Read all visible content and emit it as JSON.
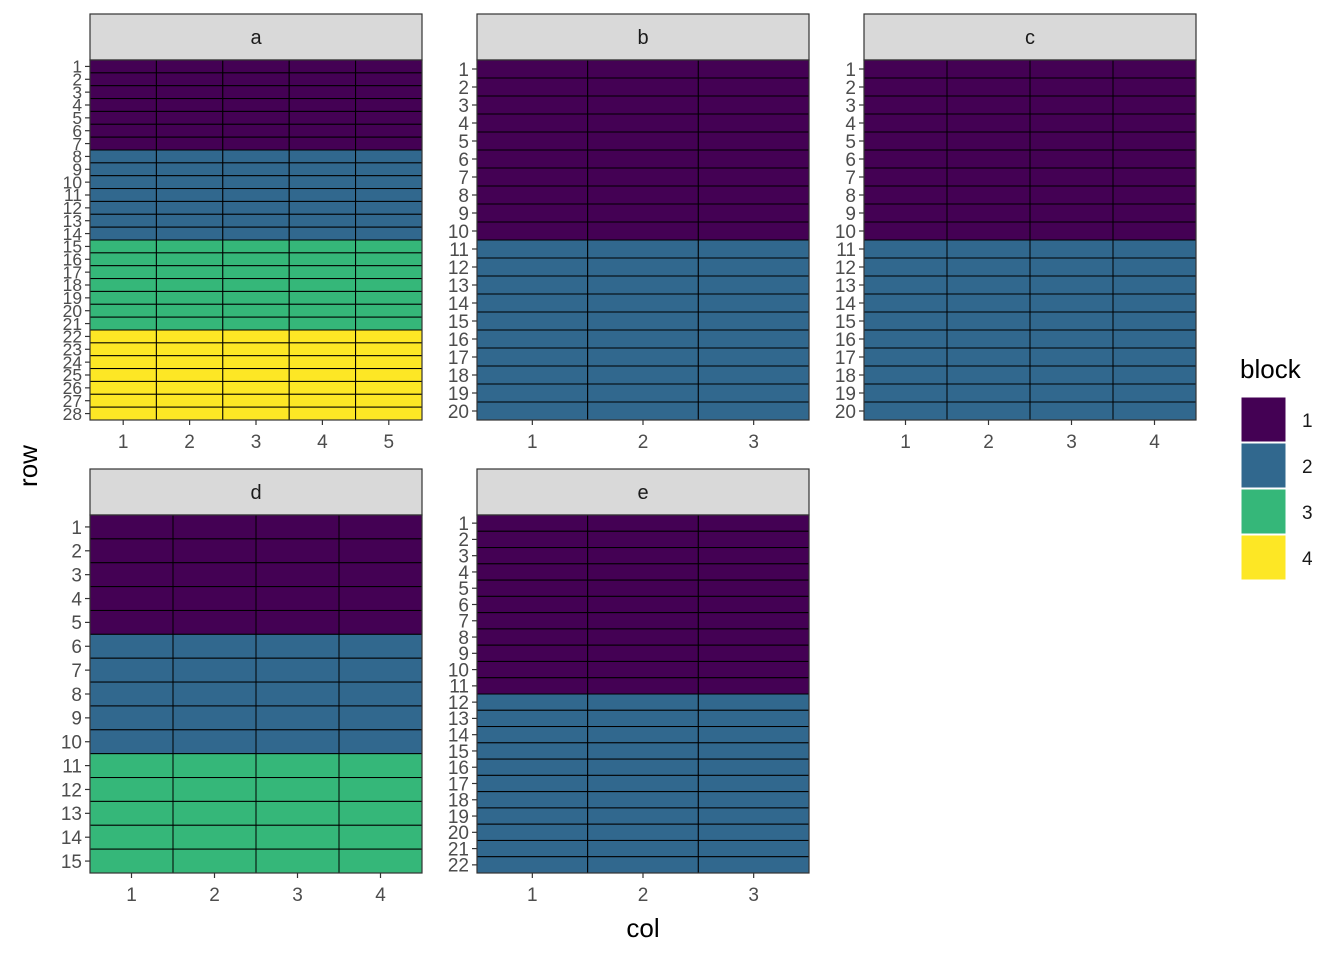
{
  "chart_data": {
    "type": "heatmap",
    "title": "",
    "xlabel": "col",
    "ylabel": "row",
    "legend": {
      "title": "block",
      "placement": "right",
      "entries": [
        {
          "label": "1",
          "color": "#440154"
        },
        {
          "label": "2",
          "color": "#31688E"
        },
        {
          "label": "3",
          "color": "#35B779"
        },
        {
          "label": "4",
          "color": "#FDE725"
        }
      ]
    },
    "panels": [
      {
        "label": "a",
        "cols": 5,
        "rows": 28,
        "blocks": [
          {
            "block": 1,
            "rows": [
              1,
              7
            ]
          },
          {
            "block": 2,
            "rows": [
              8,
              14
            ]
          },
          {
            "block": 3,
            "rows": [
              15,
              21
            ]
          },
          {
            "block": 4,
            "rows": [
              22,
              28
            ]
          }
        ]
      },
      {
        "label": "b",
        "cols": 3,
        "rows": 20,
        "blocks": [
          {
            "block": 1,
            "rows": [
              1,
              10
            ]
          },
          {
            "block": 2,
            "rows": [
              11,
              20
            ]
          }
        ]
      },
      {
        "label": "c",
        "cols": 4,
        "rows": 20,
        "blocks": [
          {
            "block": 1,
            "rows": [
              1,
              10
            ]
          },
          {
            "block": 2,
            "rows": [
              11,
              20
            ]
          }
        ]
      },
      {
        "label": "d",
        "cols": 4,
        "rows": 15,
        "blocks": [
          {
            "block": 1,
            "rows": [
              1,
              5
            ]
          },
          {
            "block": 2,
            "rows": [
              6,
              10
            ]
          },
          {
            "block": 3,
            "rows": [
              11,
              15
            ]
          }
        ]
      },
      {
        "label": "e",
        "cols": 3,
        "rows": 22,
        "blocks": [
          {
            "block": 1,
            "rows": [
              1,
              11
            ]
          },
          {
            "block": 2,
            "rows": [
              12,
              22
            ]
          }
        ]
      }
    ]
  }
}
